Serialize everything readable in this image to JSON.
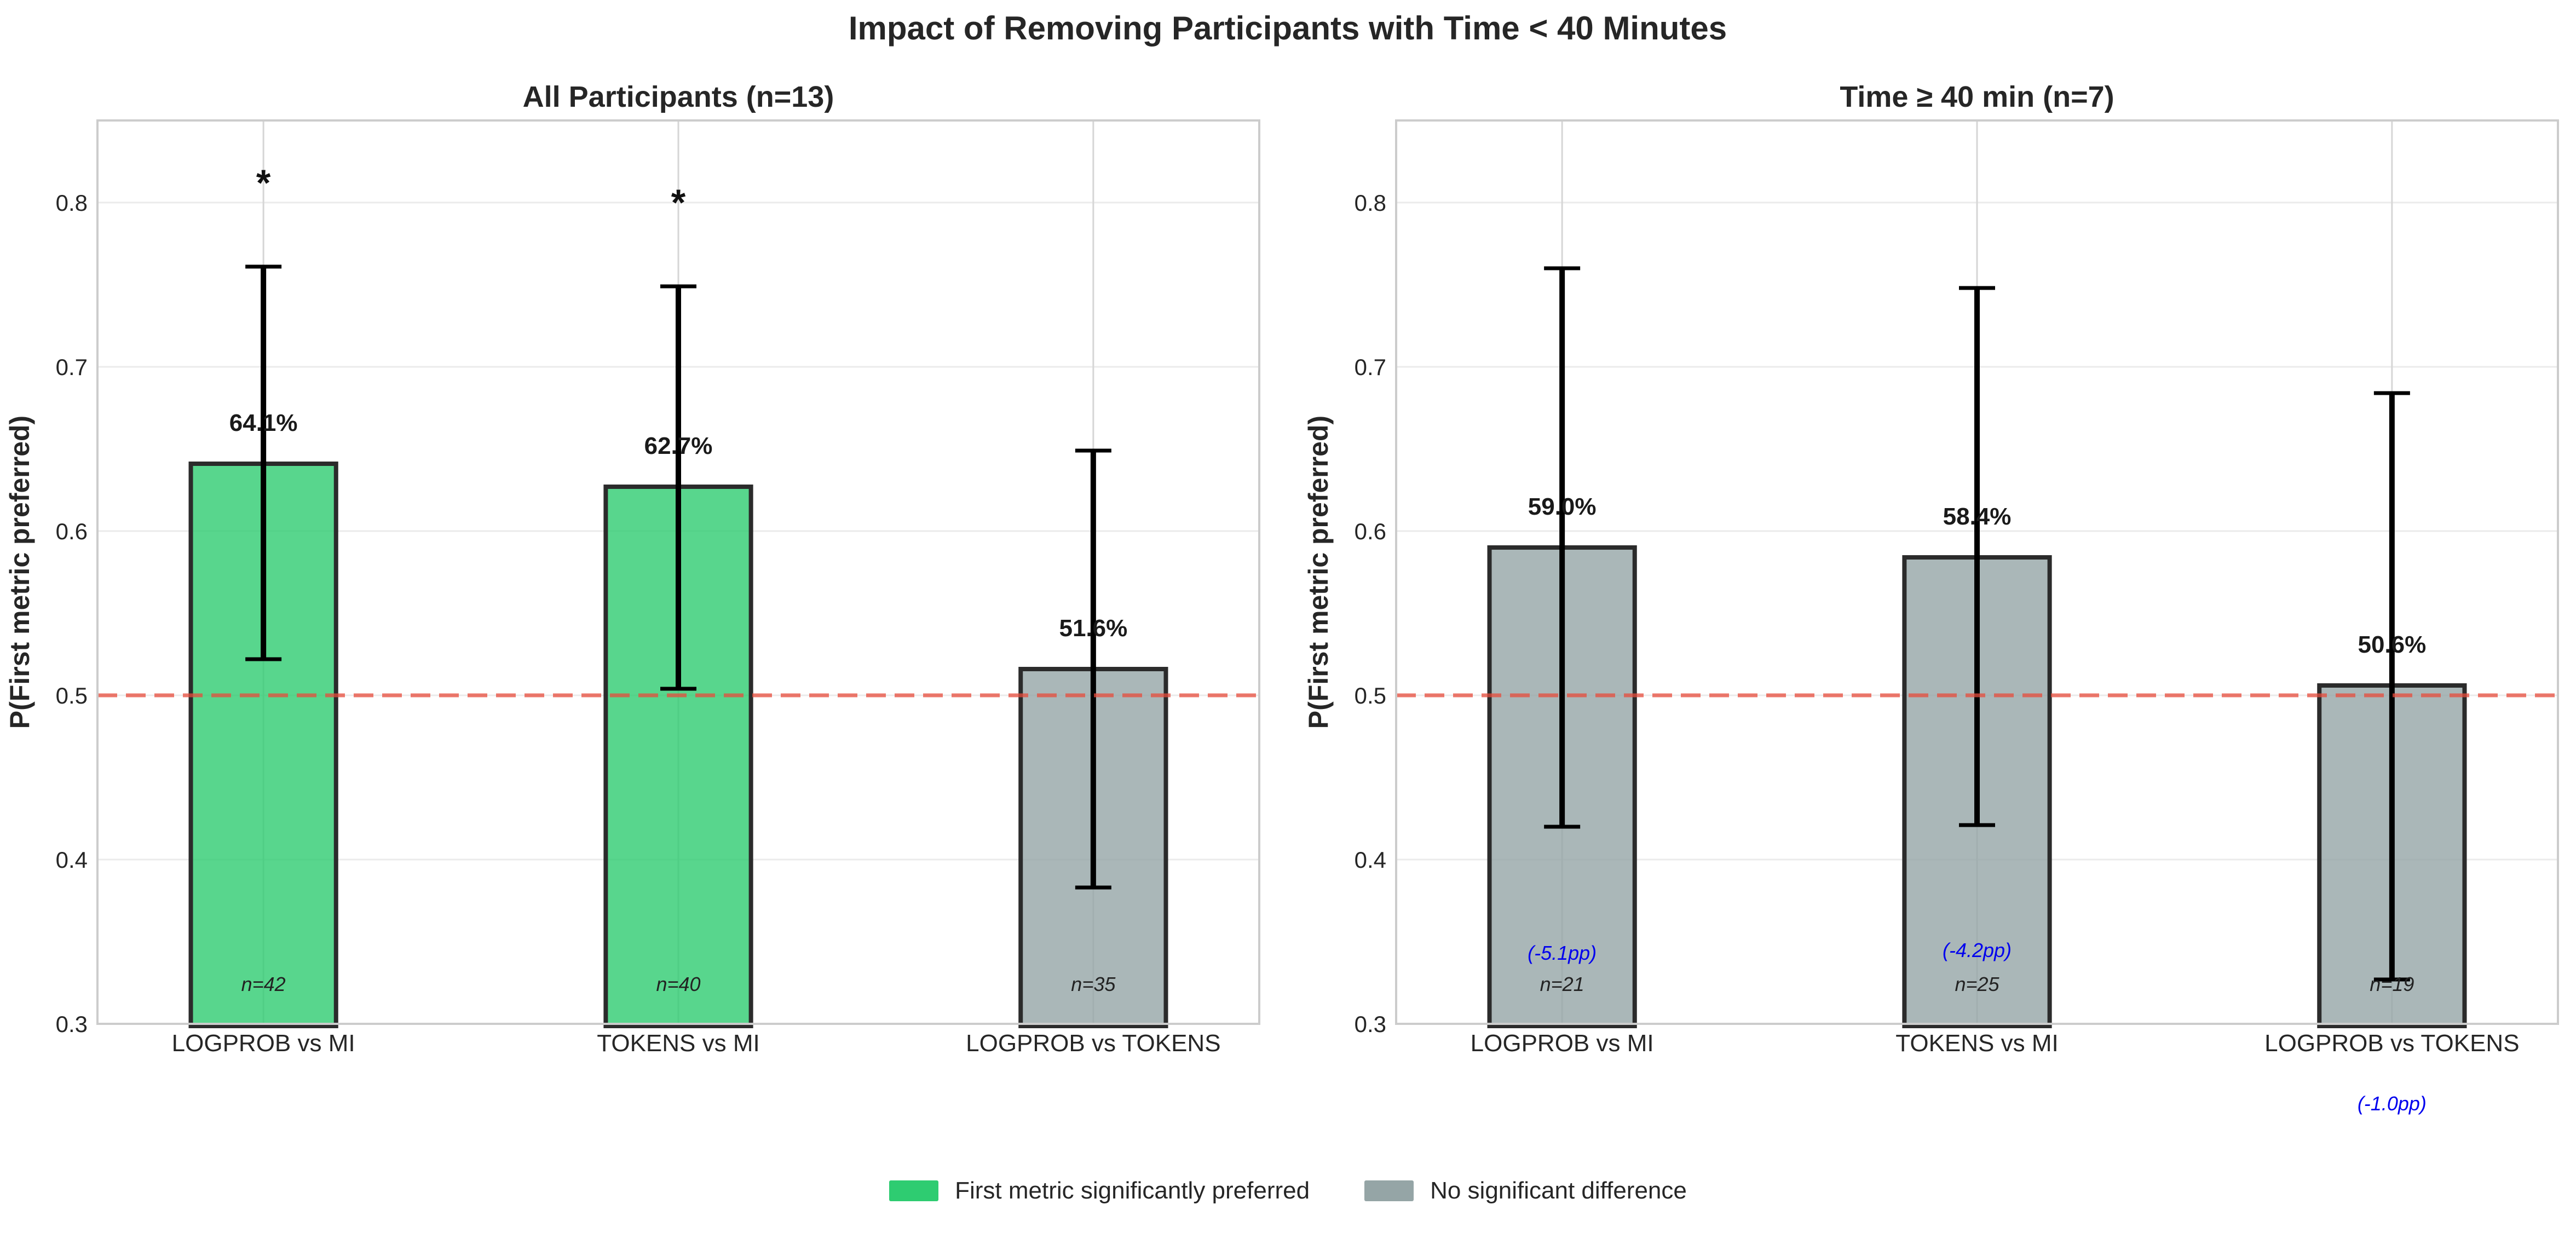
{
  "figure": {
    "title": "Impact of Removing Participants with Time < 40 Minutes"
  },
  "colors": {
    "significant": "#2ecc71",
    "not_significant": "#95a5a6",
    "reference_line": "#e74c3c",
    "change_note": "#0000ee"
  },
  "chart_data": [
    {
      "type": "bar",
      "title": "All Participants (n=13)",
      "xlabel": "",
      "ylabel": "P(First metric preferred)",
      "ylim": [
        0.3,
        0.85
      ],
      "yticks": [
        "0.3",
        "0.4",
        "0.5",
        "0.6",
        "0.7",
        "0.8"
      ],
      "reference_line": 0.5,
      "grid": true,
      "categories": [
        "LOGPROB vs MI",
        "TOKENS vs MI",
        "LOGPROB vs TOKENS"
      ],
      "values": [
        0.641,
        0.627,
        0.516
      ],
      "value_labels": [
        "64.1%",
        "62.7%",
        "51.6%"
      ],
      "ci_low": [
        0.522,
        0.504,
        0.383
      ],
      "ci_high": [
        0.761,
        0.749,
        0.649
      ],
      "significant": [
        true,
        true,
        false
      ],
      "markers": [
        "*",
        "*",
        ""
      ],
      "n_labels": [
        "n=42",
        "n=40",
        "n=35"
      ],
      "change_labels": [
        "",
        "",
        ""
      ]
    },
    {
      "type": "bar",
      "title": "Time ≥ 40 min (n=7)",
      "xlabel": "",
      "ylabel": "P(First metric preferred)",
      "ylim": [
        0.3,
        0.85
      ],
      "yticks": [
        "0.3",
        "0.4",
        "0.5",
        "0.6",
        "0.7",
        "0.8"
      ],
      "reference_line": 0.5,
      "grid": true,
      "categories": [
        "LOGPROB vs MI",
        "TOKENS vs MI",
        "LOGPROB vs TOKENS"
      ],
      "values": [
        0.59,
        0.584,
        0.506
      ],
      "value_labels": [
        "59.0%",
        "58.4%",
        "50.6%"
      ],
      "ci_low": [
        0.42,
        0.421,
        0.327
      ],
      "ci_high": [
        0.76,
        0.748,
        0.684
      ],
      "significant": [
        false,
        false,
        false
      ],
      "markers": [
        "",
        "",
        ""
      ],
      "n_labels": [
        "n=21",
        "n=25",
        "n=19"
      ],
      "change_labels": [
        "(-5.1pp)",
        "(-4.2pp)",
        "(-1.0pp)"
      ]
    }
  ],
  "legend": {
    "placement": "bottom-center",
    "items": [
      {
        "label": "First metric significantly preferred",
        "color": "#2ecc71"
      },
      {
        "label": "No significant difference",
        "color": "#95a5a6"
      }
    ]
  }
}
